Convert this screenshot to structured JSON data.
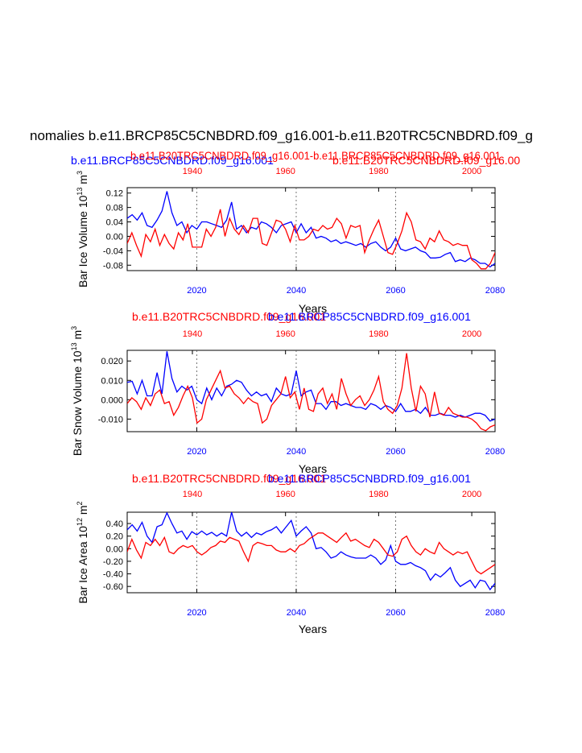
{
  "figure": {
    "title": "nomalies b.e11.BRCP85C5CNBDRD.f09_g16.001-b.e11.B20TRC5CNBDRD.f09_g",
    "header_blue": "b.e11.BRCP85C5CNBDRD.f09_g16.001",
    "header_red": "b.e11.B20TRC5CNBDRD.f09_g16.001",
    "header_red_overlap": "b.e11.B20TRC5CNBDRD.f09_g16.001-b.e11.BRCP85C5CNBDRD.f09_g16.001",
    "header_red_right": "b.e11.B20TRC5CNBDRD.f09_g16.00",
    "panel_header_red": "b.e11.B20TRC5CNBDRD.f09_g16.001",
    "panel_header_blue": "b.e11.BRCP85C5CNBDRD.f09_g16.001",
    "colors": {
      "blue": "#0000ff",
      "red": "#ff0000",
      "black": "#000000"
    }
  },
  "chart_data": [
    {
      "type": "line",
      "ylabel_main": "Bar Ice Volume 10",
      "ylabel_exp": "13",
      "ylabel_unit": " m",
      "ylabel_unit_exp": "3",
      "xlabel": "Years",
      "ylim": [
        -0.095,
        0.135
      ],
      "yticks": [
        0.12,
        0.08,
        0.04,
        0.0,
        -0.04,
        -0.08
      ],
      "ytick_labels": [
        "0.12",
        "0.08",
        "0.04",
        "0.00",
        "-0.04",
        "-0.08"
      ],
      "bottom_axis": {
        "range": [
          2006,
          2080
        ],
        "ticks": [
          2020,
          2040,
          2060,
          2080
        ],
        "labels": [
          "2020",
          "2040",
          "2060",
          "2080"
        ]
      },
      "top_axis": {
        "range": [
          1926,
          2005
        ],
        "ticks": [
          1940,
          1960,
          1980,
          2000
        ],
        "labels": [
          "1940",
          "1960",
          "1980",
          "2000"
        ]
      },
      "series": [
        {
          "name": "b.e11.BRCP85C5CNBDRD.f09_g16.001",
          "color": "#0000ff",
          "axis": "bottom",
          "x_start": 2006,
          "values": [
            0.05,
            0.06,
            0.045,
            0.065,
            0.03,
            0.025,
            0.045,
            0.07,
            0.125,
            0.065,
            0.03,
            0.04,
            0.01,
            0.03,
            0.02,
            0.04,
            0.04,
            0.035,
            0.03,
            0.025,
            0.045,
            0.095,
            0.02,
            0.03,
            0.01,
            0.025,
            0.02,
            0.04,
            0.035,
            0.025,
            0.01,
            0.03,
            0.035,
            0.04,
            0.01,
            0.035,
            0.01,
            0.025,
            -0.005,
            0.0,
            -0.005,
            -0.015,
            -0.01,
            -0.02,
            -0.015,
            -0.02,
            -0.025,
            -0.02,
            -0.03,
            -0.02,
            -0.015,
            -0.03,
            -0.04,
            -0.03,
            -0.005,
            -0.035,
            -0.04,
            -0.035,
            -0.03,
            -0.04,
            -0.045,
            -0.06,
            -0.06,
            -0.058,
            -0.05,
            -0.045,
            -0.07,
            -0.065,
            -0.07,
            -0.06,
            -0.065,
            -0.075,
            -0.075,
            -0.085,
            -0.075
          ]
        },
        {
          "name": "b.e11.B20TRC5CNBDRD.f09_g16.001",
          "color": "#ff0000",
          "axis": "top",
          "x_start": 1926,
          "values": [
            -0.02,
            0.01,
            -0.025,
            -0.055,
            0.005,
            -0.015,
            0.02,
            -0.025,
            0.005,
            -0.02,
            -0.035,
            0.01,
            -0.01,
            0.035,
            -0.03,
            -0.03,
            -0.03,
            0.02,
            0.0,
            0.025,
            0.075,
            0.0,
            0.05,
            0.02,
            0.005,
            0.03,
            0.01,
            0.05,
            0.05,
            -0.02,
            -0.025,
            0.01,
            0.045,
            0.04,
            0.02,
            -0.015,
            0.03,
            -0.01,
            -0.01,
            0.0,
            0.02,
            0.015,
            0.03,
            0.02,
            0.025,
            0.05,
            0.035,
            -0.005,
            0.03,
            0.025,
            0.03,
            -0.045,
            -0.01,
            0.02,
            0.045,
            0.0,
            -0.045,
            -0.05,
            -0.02,
            0.015,
            0.065,
            0.04,
            -0.01,
            -0.015,
            -0.035,
            -0.005,
            -0.015,
            0.015,
            -0.01,
            -0.015,
            -0.025,
            -0.02,
            -0.025,
            -0.025,
            -0.065,
            -0.075,
            -0.09,
            -0.09,
            -0.075,
            -0.045
          ]
        }
      ]
    },
    {
      "type": "line",
      "ylabel_main": "Bar Snow Volume 10",
      "ylabel_exp": "13",
      "ylabel_unit": " m",
      "ylabel_unit_exp": "3",
      "xlabel": "Years",
      "ylim": [
        -0.0165,
        0.0255
      ],
      "yticks": [
        0.02,
        0.01,
        0.0,
        -0.01
      ],
      "ytick_labels": [
        "0.020",
        "0.010",
        "0.000",
        "-0.010"
      ],
      "bottom_axis": {
        "range": [
          2006,
          2080
        ],
        "ticks": [
          2020,
          2040,
          2060,
          2080
        ],
        "labels": [
          "2020",
          "2040",
          "2060",
          "2080"
        ]
      },
      "top_axis": {
        "range": [
          1926,
          2005
        ],
        "ticks": [
          1940,
          1960,
          1980,
          2000
        ],
        "labels": [
          "1940",
          "1960",
          "1980",
          "2000"
        ]
      },
      "series": [
        {
          "name": "b.e11.BRCP85C5CNBDRD.f09_g16.001",
          "color": "#0000ff",
          "axis": "bottom",
          "x_start": 2006,
          "values": [
            0.009,
            0.0095,
            0.003,
            0.01,
            0.002,
            0.002,
            0.014,
            0.003,
            0.025,
            0.011,
            0.004,
            0.007,
            0.005,
            0.007,
            0.0,
            -0.002,
            0.006,
            0.0,
            0.006,
            0.002,
            0.007,
            0.008,
            0.01,
            0.009,
            0.005,
            0.002,
            0.004,
            0.002,
            0.003,
            -0.001,
            0.006,
            0.003,
            0.002,
            0.003,
            0.015,
            0.002,
            0.004,
            0.005,
            -0.002,
            -0.002,
            -0.005,
            -0.001,
            -0.001,
            -0.003,
            -0.002,
            -0.003,
            -0.004,
            -0.004,
            -0.005,
            -0.002,
            -0.003,
            -0.005,
            -0.003,
            -0.004,
            -0.006,
            -0.002,
            -0.006,
            -0.006,
            -0.005,
            -0.007,
            -0.004,
            -0.008,
            -0.008,
            -0.007,
            -0.008,
            -0.008,
            -0.009,
            -0.008,
            -0.009,
            -0.008,
            -0.007,
            -0.007,
            -0.008,
            -0.011,
            -0.01
          ]
        },
        {
          "name": "b.e11.B20TRC5CNBDRD.f09_g16.001",
          "color": "#ff0000",
          "axis": "top",
          "x_start": 1926,
          "values": [
            -0.002,
            0.001,
            -0.001,
            -0.005,
            0.001,
            -0.003,
            0.003,
            0.005,
            -0.002,
            -0.001,
            -0.008,
            -0.004,
            0.002,
            0.007,
            0.001,
            -0.012,
            -0.01,
            0.0,
            0.005,
            0.01,
            0.015,
            0.006,
            0.007,
            0.003,
            0.001,
            -0.002,
            0.001,
            -0.001,
            -0.002,
            -0.012,
            -0.01,
            -0.003,
            0.0,
            0.003,
            0.012,
            0.001,
            0.004,
            -0.005,
            0.006,
            -0.005,
            -0.006,
            0.003,
            0.006,
            -0.002,
            0.003,
            -0.005,
            0.011,
            0.003,
            -0.003,
            0.0,
            0.002,
            -0.003,
            0.0,
            0.005,
            0.012,
            -0.001,
            -0.005,
            -0.007,
            -0.003,
            0.006,
            0.024,
            0.006,
            -0.006,
            0.007,
            0.003,
            -0.009,
            0.004,
            -0.007,
            -0.008,
            -0.004,
            -0.007,
            -0.008,
            -0.009,
            -0.009,
            -0.01,
            -0.012,
            -0.015,
            -0.016,
            -0.014,
            -0.013
          ]
        }
      ]
    },
    {
      "type": "line",
      "ylabel_main": "Bar Ice Area 10",
      "ylabel_exp": "12",
      "ylabel_unit": " m",
      "ylabel_unit_exp": "2",
      "xlabel": "Years",
      "ylim": [
        -0.7,
        0.58
      ],
      "yticks": [
        0.4,
        0.2,
        0.0,
        -0.2,
        -0.4,
        -0.6
      ],
      "ytick_labels": [
        "0.40",
        "0.20",
        "0.00",
        "-0.20",
        "-0.40",
        "-0.60"
      ],
      "bottom_axis": {
        "range": [
          2006,
          2080
        ],
        "ticks": [
          2020,
          2040,
          2060,
          2080
        ],
        "labels": [
          "2020",
          "2040",
          "2060",
          "2080"
        ]
      },
      "top_axis": {
        "range": [
          1926,
          2005
        ],
        "ticks": [
          1940,
          1960,
          1980,
          2000
        ],
        "labels": [
          "1940",
          "1960",
          "1980",
          "2000"
        ]
      },
      "series": [
        {
          "name": "b.e11.BRCP85C5CNBDRD.f09_g16.001",
          "color": "#0000ff",
          "axis": "bottom",
          "x_start": 2006,
          "values": [
            0.3,
            0.38,
            0.28,
            0.42,
            0.2,
            0.1,
            0.35,
            0.38,
            0.57,
            0.4,
            0.25,
            0.28,
            0.15,
            0.27,
            0.22,
            0.28,
            0.22,
            0.26,
            0.2,
            0.25,
            0.2,
            0.58,
            0.28,
            0.2,
            0.26,
            0.18,
            0.25,
            0.22,
            0.27,
            0.3,
            0.35,
            0.25,
            0.35,
            0.45,
            0.2,
            0.28,
            0.35,
            0.25,
            0.0,
            0.02,
            -0.05,
            -0.15,
            -0.12,
            -0.05,
            -0.1,
            -0.13,
            -0.15,
            -0.15,
            -0.15,
            -0.1,
            -0.15,
            -0.25,
            -0.18,
            0.05,
            -0.2,
            -0.25,
            -0.25,
            -0.22,
            -0.27,
            -0.3,
            -0.35,
            -0.5,
            -0.4,
            -0.45,
            -0.38,
            -0.3,
            -0.5,
            -0.6,
            -0.55,
            -0.5,
            -0.62,
            -0.5,
            -0.52,
            -0.65,
            -0.55
          ]
        },
        {
          "name": "b.e11.B20TRC5CNBDRD.f09_g16.001",
          "color": "#ff0000",
          "axis": "top",
          "x_start": 1926,
          "values": [
            -0.05,
            0.15,
            -0.02,
            -0.15,
            0.1,
            0.05,
            0.15,
            0.05,
            0.18,
            -0.05,
            -0.08,
            0.0,
            0.05,
            0.02,
            0.05,
            -0.05,
            -0.1,
            -0.05,
            0.02,
            0.05,
            0.12,
            0.1,
            0.18,
            0.15,
            0.12,
            -0.05,
            -0.2,
            0.05,
            0.1,
            0.08,
            0.05,
            0.05,
            -0.02,
            -0.05,
            -0.05,
            0.0,
            -0.05,
            0.05,
            0.08,
            0.15,
            0.2,
            0.25,
            0.25,
            0.2,
            0.15,
            0.1,
            0.18,
            0.25,
            0.12,
            0.15,
            0.1,
            0.05,
            0.02,
            0.15,
            0.1,
            0.0,
            -0.1,
            -0.12,
            -0.05,
            0.15,
            0.2,
            0.05,
            -0.05,
            -0.1,
            0.0,
            -0.05,
            -0.08,
            0.1,
            0.0,
            -0.05,
            -0.1,
            -0.05,
            -0.08,
            -0.05,
            -0.2,
            -0.35,
            -0.4,
            -0.35,
            -0.3,
            -0.25
          ]
        }
      ]
    }
  ]
}
